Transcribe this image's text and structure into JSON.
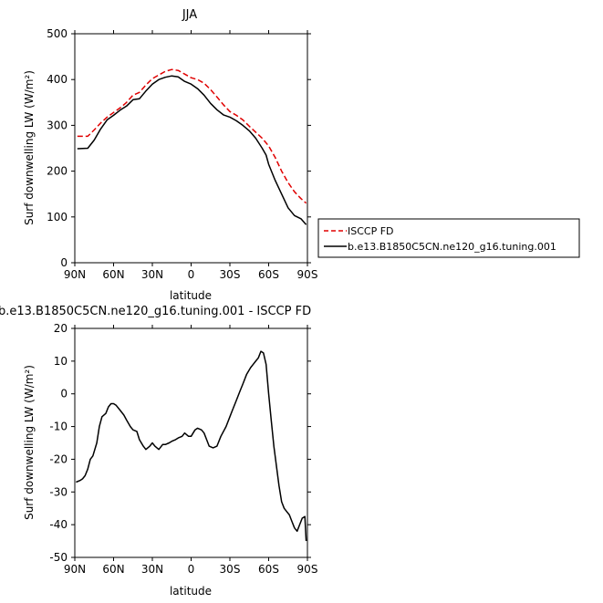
{
  "chart_data": [
    {
      "type": "line",
      "title": "JJA",
      "xlabel": "latitude",
      "ylabel": "Surf downwelling LW (W/m²)",
      "xlim": [
        90,
        -90
      ],
      "ylim": [
        0,
        500
      ],
      "xticks": [
        {
          "value": 90,
          "label": "90N"
        },
        {
          "value": 60,
          "label": "60N"
        },
        {
          "value": 30,
          "label": "30N"
        },
        {
          "value": 0,
          "label": "0"
        },
        {
          "value": -30,
          "label": "30S"
        },
        {
          "value": -60,
          "label": "60S"
        },
        {
          "value": -90,
          "label": "90S"
        }
      ],
      "yticks": [
        0,
        100,
        200,
        300,
        400,
        500
      ],
      "legend_position": "right",
      "series": [
        {
          "name": "ISCCP FD",
          "color": "#e00000",
          "dash": "dashed",
          "x": [
            88,
            80,
            75,
            70,
            65,
            60,
            55,
            50,
            45,
            40,
            35,
            30,
            25,
            20,
            15,
            10,
            5,
            0,
            -5,
            -10,
            -15,
            -20,
            -25,
            -30,
            -35,
            -40,
            -45,
            -50,
            -55,
            -60,
            -65,
            -70,
            -75,
            -80,
            -85,
            -89
          ],
          "y": [
            276,
            276,
            290,
            305,
            318,
            328,
            338,
            350,
            366,
            372,
            388,
            402,
            410,
            418,
            422,
            420,
            412,
            404,
            400,
            392,
            378,
            362,
            345,
            330,
            322,
            312,
            298,
            285,
            272,
            255,
            230,
            200,
            175,
            155,
            140,
            130
          ]
        },
        {
          "name": "b.e13.B1850C5CN.ne120_g16.tuning.001",
          "color": "#000000",
          "dash": "solid",
          "x": [
            88,
            80,
            75,
            70,
            65,
            60,
            55,
            50,
            45,
            40,
            35,
            30,
            25,
            20,
            15,
            10,
            5,
            0,
            -5,
            -10,
            -15,
            -20,
            -25,
            -30,
            -35,
            -40,
            -45,
            -50,
            -55,
            -58,
            -60,
            -65,
            -70,
            -75,
            -80,
            -85,
            -89
          ],
          "y": [
            249,
            250,
            268,
            292,
            312,
            322,
            333,
            342,
            356,
            358,
            375,
            390,
            400,
            405,
            408,
            406,
            396,
            390,
            380,
            366,
            348,
            334,
            323,
            318,
            310,
            300,
            288,
            272,
            250,
            235,
            215,
            180,
            150,
            120,
            103,
            96,
            83
          ]
        }
      ]
    },
    {
      "type": "line",
      "title": "b.e13.B1850C5CN.ne120_g16.tuning.001 - ISCCP FD",
      "xlabel": "latitude",
      "ylabel": "Surf downwelling LW (W/m²)",
      "xlim": [
        90,
        -90
      ],
      "ylim": [
        -50,
        20
      ],
      "xticks": [
        {
          "value": 90,
          "label": "90N"
        },
        {
          "value": 60,
          "label": "60N"
        },
        {
          "value": 30,
          "label": "30N"
        },
        {
          "value": 0,
          "label": "0"
        },
        {
          "value": -30,
          "label": "30S"
        },
        {
          "value": -60,
          "label": "60S"
        },
        {
          "value": -90,
          "label": "90S"
        }
      ],
      "yticks": [
        -50,
        -40,
        -30,
        -20,
        -10,
        0,
        10,
        20
      ],
      "series": [
        {
          "color": "#000000",
          "dash": "solid",
          "x": [
            89,
            86,
            84,
            82,
            80,
            78,
            76,
            73,
            71,
            69,
            66,
            64,
            62,
            60,
            58,
            55,
            52,
            50,
            47,
            45,
            42,
            40,
            37,
            35,
            32,
            30,
            28,
            25,
            22,
            20,
            17,
            15,
            12,
            10,
            7,
            5,
            2,
            0,
            -3,
            -5,
            -8,
            -10,
            -12,
            -14,
            -17,
            -20,
            -23,
            -27,
            -30,
            -32,
            -35,
            -38,
            -40,
            -43,
            -46,
            -48,
            -50,
            -52,
            -54,
            -56,
            -58,
            -60,
            -62,
            -64,
            -66,
            -68,
            -70,
            -72,
            -74,
            -76,
            -78,
            -80,
            -82,
            -84,
            -86,
            -88,
            -89
          ],
          "y": [
            -27,
            -26.5,
            -26,
            -25,
            -23,
            -20,
            -19,
            -15,
            -10,
            -7,
            -6,
            -4,
            -3,
            -3,
            -3.5,
            -5,
            -6.5,
            -8,
            -10,
            -11,
            -11.5,
            -14,
            -16,
            -17,
            -16,
            -15,
            -16,
            -17,
            -15.5,
            -15.5,
            -15,
            -14.5,
            -14,
            -13.5,
            -13,
            -12,
            -13,
            -13,
            -11,
            -10.5,
            -11,
            -12,
            -14,
            -16,
            -16.5,
            -16,
            -13,
            -10,
            -7,
            -5,
            -2,
            1,
            3,
            6,
            8,
            9,
            10,
            11,
            13,
            12.5,
            9,
            0,
            -8,
            -16,
            -22,
            -28,
            -33,
            -35,
            -36,
            -37,
            -39,
            -41,
            -42,
            -40,
            -38,
            -37.5,
            -45
          ]
        }
      ]
    }
  ],
  "legend": {
    "entries": [
      {
        "label": "ISCCP FD",
        "color": "#e00000",
        "dash": "dashed"
      },
      {
        "label": "b.e13.B1850C5CN.ne120_g16.tuning.001",
        "color": "#000000",
        "dash": "solid"
      }
    ]
  }
}
